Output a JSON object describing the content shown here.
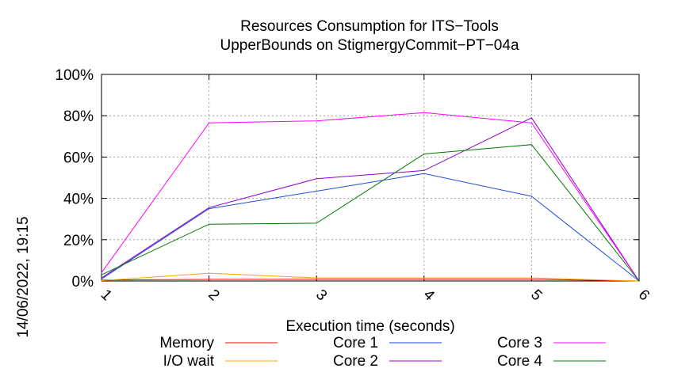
{
  "chart_data": {
    "type": "line",
    "title": "Resources Consumption for ITS−Tools",
    "subtitle": "UpperBounds on StigmergyCommit−PT−04a",
    "xlabel": "Execution time (seconds)",
    "ylabel": "",
    "timestamp": "14/06/2022, 19:15",
    "x": [
      1,
      2,
      3,
      4,
      5,
      6
    ],
    "xlim": [
      1,
      6
    ],
    "ylim": [
      0,
      100
    ],
    "x_ticks": [
      "1",
      "2",
      "3",
      "4",
      "5",
      "6"
    ],
    "y_ticks": [
      "0%",
      "20%",
      "40%",
      "60%",
      "80%",
      "100%"
    ],
    "y_tick_values": [
      0,
      20,
      40,
      60,
      80,
      100
    ],
    "grid": true,
    "legend_position": "bottom",
    "series": [
      {
        "name": "Memory",
        "color": "#ff0000",
        "values": [
          0.5,
          0.8,
          0.9,
          0.9,
          0.9,
          0.0
        ]
      },
      {
        "name": "I/O wait",
        "color": "#ffa500",
        "values": [
          0.2,
          3.8,
          1.5,
          1.5,
          1.5,
          0.0
        ]
      },
      {
        "name": "Core 1",
        "color": "#1f4ed8",
        "values": [
          1.0,
          35.0,
          43.5,
          52.0,
          41.0,
          0.0
        ]
      },
      {
        "name": "Core 2",
        "color": "#9400d3",
        "values": [
          1.5,
          35.5,
          49.5,
          53.5,
          79.0,
          0.0
        ]
      },
      {
        "name": "Core 3",
        "color": "#ff00ff",
        "values": [
          4.0,
          76.5,
          77.5,
          81.5,
          76.5,
          0.0
        ]
      },
      {
        "name": "Core 4",
        "color": "#007a00",
        "values": [
          3.0,
          27.5,
          28.0,
          61.5,
          66.0,
          0.0
        ]
      }
    ]
  }
}
